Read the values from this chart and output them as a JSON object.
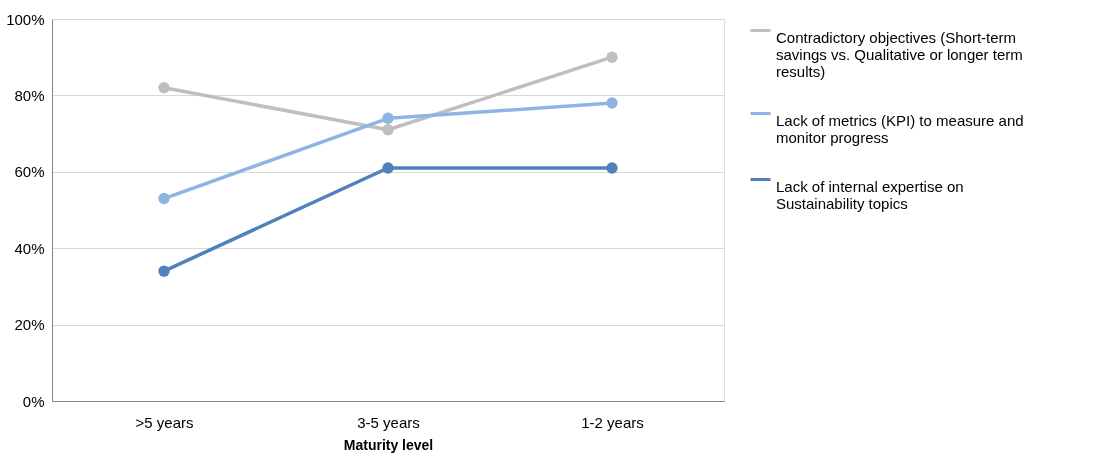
{
  "chart_data": {
    "type": "line",
    "xlabel": "Maturity level",
    "categories": [
      ">5 years",
      "3-5 years",
      "1-2 years"
    ],
    "series": [
      {
        "name": "Contradictory objectives (Short-term savings vs. Qualitative or longer term results)",
        "color": "#bfbfbf",
        "values": [
          82,
          71,
          90
        ]
      },
      {
        "name": "Lack of metrics (KPI) to measure and monitor progress",
        "color": "#8eb4e3",
        "values": [
          53,
          74,
          78
        ]
      },
      {
        "name": "Lack of internal expertise on Sustainability topics",
        "color": "#4f81bd",
        "values": [
          34,
          61,
          61
        ]
      }
    ],
    "ylim": [
      0,
      100
    ],
    "yticks": [
      {
        "value": 0,
        "label": "0%"
      },
      {
        "value": 20,
        "label": "20%"
      },
      {
        "value": 40,
        "label": "40%"
      },
      {
        "value": 60,
        "label": "60%"
      },
      {
        "value": 80,
        "label": "80%"
      },
      {
        "value": 100,
        "label": "100%"
      }
    ],
    "grid": "y",
    "legend": "right",
    "marker": "circle",
    "line_style": "solid"
  }
}
